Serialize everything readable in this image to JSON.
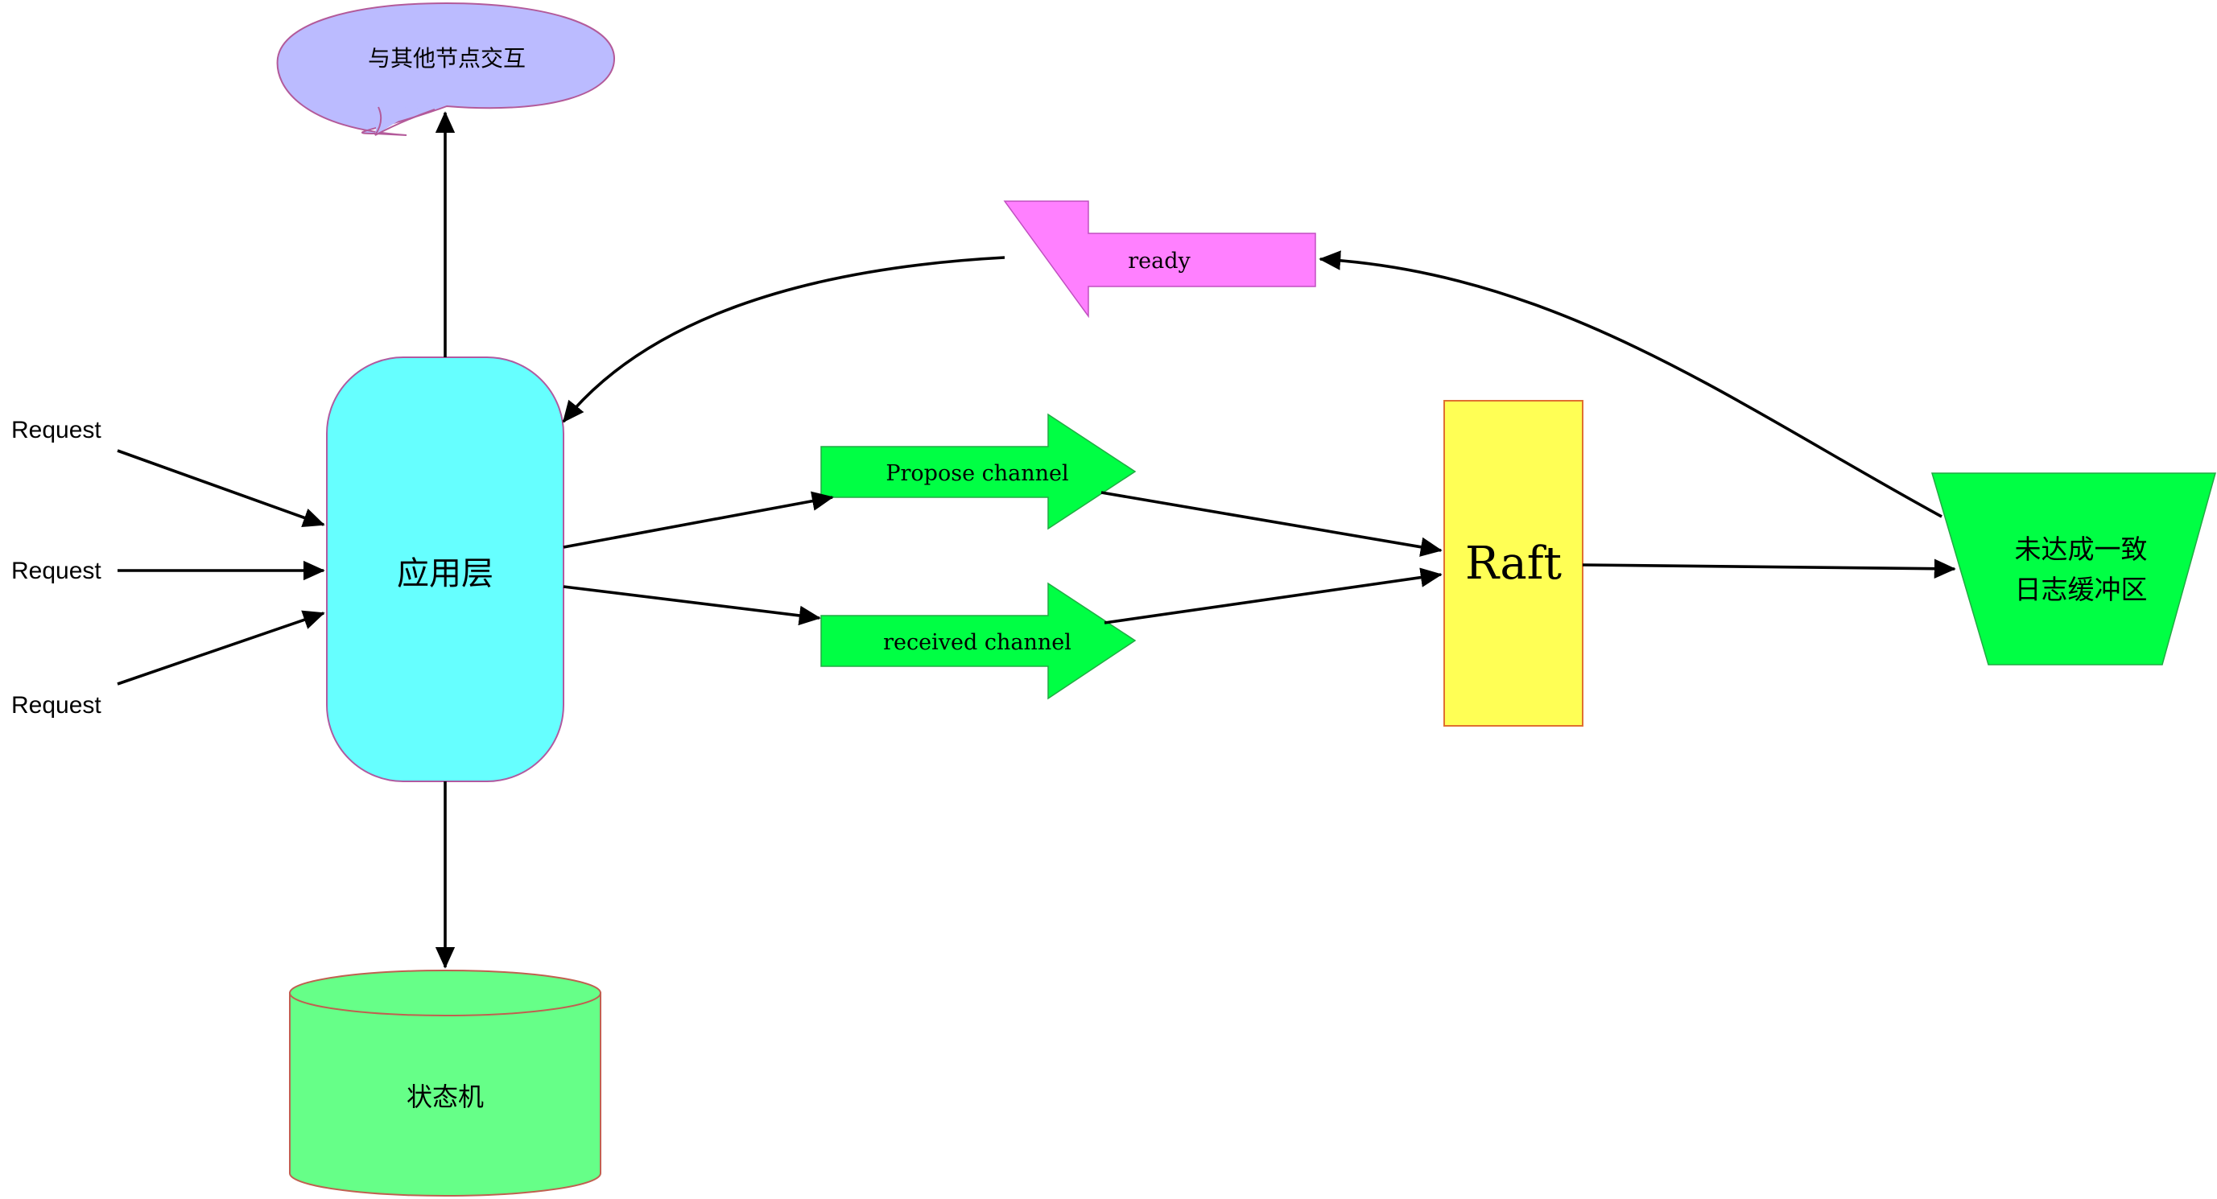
{
  "colors": {
    "cloud_fill": "#bbbbff",
    "cloud_stroke": "#b35a9a",
    "app_fill": "#66ffff",
    "ready_fill": "#ff80ff",
    "channel_fill": "#00ff44",
    "raft_fill": "#ffff55",
    "raft_stroke": "#e07030",
    "buffer_fill": "#00ff44",
    "statemachine_fill": "#66ff88",
    "statemachine_stroke": "#c06050"
  },
  "nodes": {
    "cloud": {
      "label": "与其他节点交互"
    },
    "app_layer": {
      "label": "应用层"
    },
    "state_machine": {
      "label": "状态机"
    },
    "ready": {
      "label": "ready"
    },
    "propose_channel": {
      "label": "Propose channel"
    },
    "received_channel": {
      "label": "received channel"
    },
    "raft": {
      "label": "Raft"
    },
    "buffer": {
      "line1": "未达成一致",
      "line2": "日志缓冲区"
    }
  },
  "requests": [
    {
      "label": "Request"
    },
    {
      "label": "Request"
    },
    {
      "label": "Request"
    }
  ]
}
